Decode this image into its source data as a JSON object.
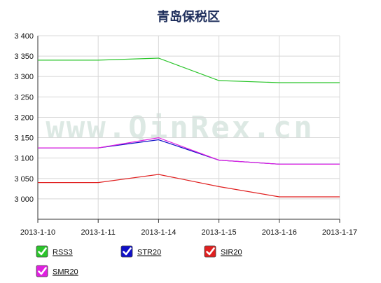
{
  "watermark": "www.QinRex.cn",
  "chart_data": {
    "type": "line",
    "title": "青岛保税区",
    "xlabel": "",
    "ylabel": "",
    "categories": [
      "2013-1-10",
      "2013-1-11",
      "2013-1-14",
      "2013-1-15",
      "2013-1-16",
      "2013-1-17"
    ],
    "ylim": [
      2950,
      3400
    ],
    "yticks": [
      3000,
      3050,
      3100,
      3150,
      3200,
      3250,
      3300,
      3350,
      3400
    ],
    "ytick_labels": [
      "3 000",
      "3 050",
      "3 100",
      "3 150",
      "3 200",
      "3 250",
      "3 300",
      "3 350",
      "3 400"
    ],
    "grid": true,
    "legend_position": "bottom-left",
    "series": [
      {
        "name": "RSS3",
        "color": "#2bc52b",
        "values": [
          3340,
          3340,
          3345,
          3290,
          3285,
          3285
        ]
      },
      {
        "name": "STR20",
        "color": "#1010c8",
        "values": [
          3125,
          3125,
          3145,
          3095,
          3085,
          3085
        ]
      },
      {
        "name": "SIR20",
        "color": "#e02020",
        "values": [
          3040,
          3040,
          3060,
          3030,
          3005,
          3005
        ]
      },
      {
        "name": "SMR20",
        "color": "#e020e0",
        "values": [
          3125,
          3125,
          3150,
          3095,
          3085,
          3085
        ]
      }
    ]
  }
}
